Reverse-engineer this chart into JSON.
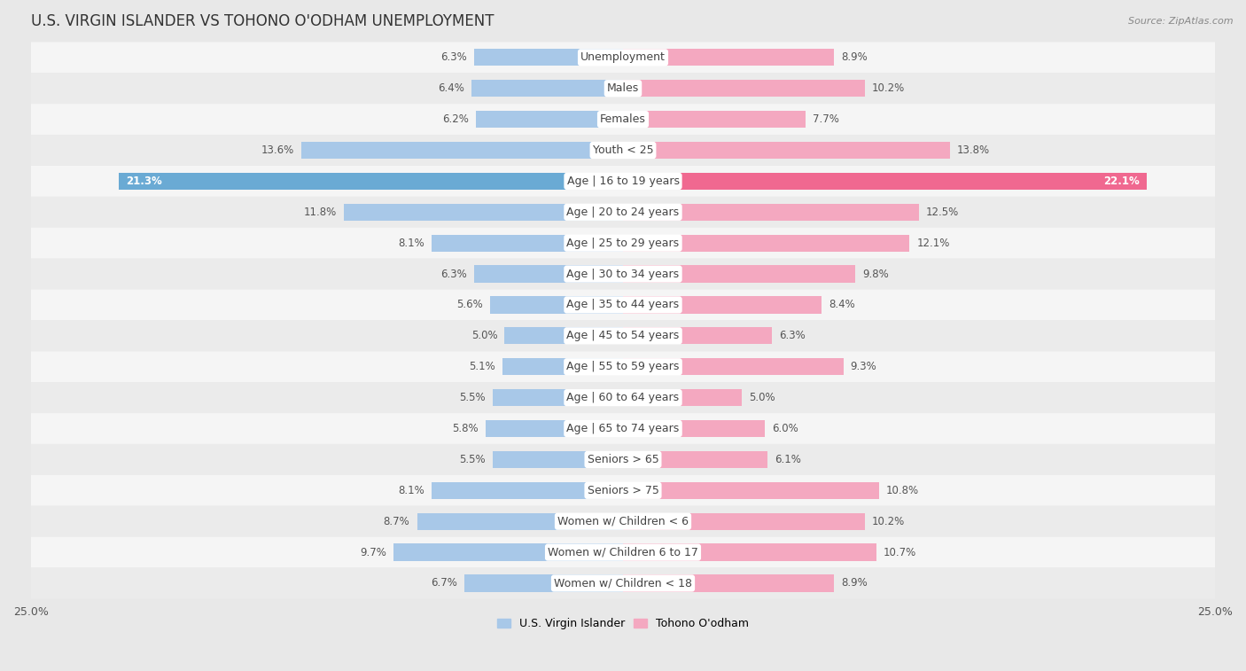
{
  "title": "U.S. VIRGIN ISLANDER VS TOHONO O'ODHAM UNEMPLOYMENT",
  "source": "Source: ZipAtlas.com",
  "categories": [
    "Unemployment",
    "Males",
    "Females",
    "Youth < 25",
    "Age | 16 to 19 years",
    "Age | 20 to 24 years",
    "Age | 25 to 29 years",
    "Age | 30 to 34 years",
    "Age | 35 to 44 years",
    "Age | 45 to 54 years",
    "Age | 55 to 59 years",
    "Age | 60 to 64 years",
    "Age | 65 to 74 years",
    "Seniors > 65",
    "Seniors > 75",
    "Women w/ Children < 6",
    "Women w/ Children 6 to 17",
    "Women w/ Children < 18"
  ],
  "left_values": [
    6.3,
    6.4,
    6.2,
    13.6,
    21.3,
    11.8,
    8.1,
    6.3,
    5.6,
    5.0,
    5.1,
    5.5,
    5.8,
    5.5,
    8.1,
    8.7,
    9.7,
    6.7
  ],
  "right_values": [
    8.9,
    10.2,
    7.7,
    13.8,
    22.1,
    12.5,
    12.1,
    9.8,
    8.4,
    6.3,
    9.3,
    5.0,
    6.0,
    6.1,
    10.8,
    10.2,
    10.7,
    8.9
  ],
  "left_color": "#a8c8e8",
  "right_color": "#f4a8c0",
  "left_highlight_color": "#6aaad4",
  "right_highlight_color": "#f06890",
  "highlight_index": 4,
  "left_label": "U.S. Virgin Islander",
  "right_label": "Tohono O'odham",
  "xlim": 25.0,
  "background_color": "#e8e8e8",
  "row_color_even": "#f5f5f5",
  "row_color_odd": "#ebebeb",
  "title_fontsize": 12,
  "label_fontsize": 9,
  "value_fontsize": 8.5,
  "tick_fontsize": 9,
  "source_fontsize": 8
}
